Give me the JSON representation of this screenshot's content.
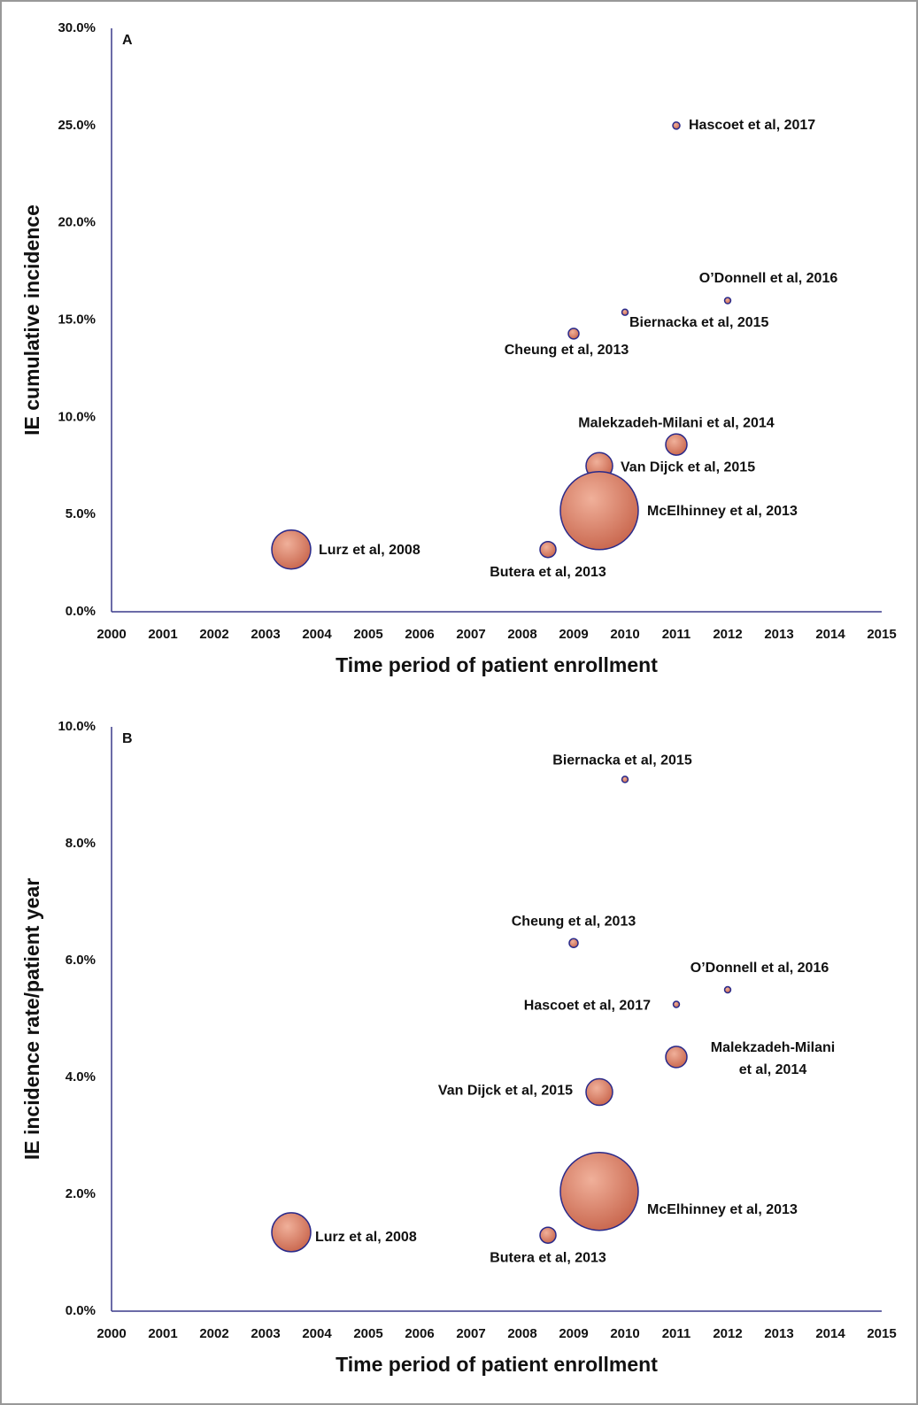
{
  "chart_data": [
    {
      "type": "bubble",
      "annotation": "A",
      "xlabel": "Time period of patient enrollment",
      "ylabel": "IE cumulative incidence",
      "labels": [
        "Hascoet et al, 2017",
        "O’Donnell et al, 2016",
        "Biernacka et al, 2015",
        "Cheung et al, 2013",
        "Malekzadeh-Milani et al, 2014",
        "Van Dijck et al, 2015",
        "McElhinney et al, 2013",
        "Lurz et al, 2008",
        "Butera et al, 2013"
      ],
      "x": [
        2011,
        2012,
        2010,
        2009,
        2011,
        2009.5,
        2009.5,
        2003.5,
        2008.5
      ],
      "values": [
        25.0,
        16.0,
        15.4,
        14.3,
        8.6,
        7.5,
        5.2,
        3.2,
        3.2
      ],
      "sizes": [
        16,
        12,
        12,
        36,
        144,
        225,
        1936,
        484,
        81
      ],
      "color": "#d9826a",
      "edge_color": "#2a2a8a",
      "xlim": [
        2000,
        2015
      ],
      "xticks": [
        2000,
        2001,
        2002,
        2003,
        2004,
        2005,
        2006,
        2007,
        2008,
        2009,
        2010,
        2011,
        2012,
        2013,
        2014,
        2015
      ],
      "ylim": [
        0,
        30
      ],
      "yticks": [
        {
          "value": 0,
          "label": "0.0%"
        },
        {
          "value": 5,
          "label": "5.0%"
        },
        {
          "value": 10,
          "label": "10.0%"
        },
        {
          "value": 15,
          "label": "15.0%"
        },
        {
          "value": 20,
          "label": "20.0%"
        },
        {
          "value": 25,
          "label": "25.0%"
        },
        {
          "value": 30,
          "label": "30.0%"
        }
      ]
    },
    {
      "type": "bubble",
      "annotation": "B",
      "xlabel": "Time period of patient enrollment",
      "ylabel": "IE incidence rate/patient year",
      "labels": [
        "Biernacka et al, 2015",
        "Cheung et al, 2013",
        "O’Donnell et al, 2016",
        "Hascoet et al, 2017",
        [
          "Malekzadeh-Milani",
          "et al, 2014"
        ],
        "Van Dijck et al, 2015",
        "McElhinney et al, 2013",
        "Lurz et al, 2008",
        "Butera et al, 2013"
      ],
      "x": [
        2010,
        2009,
        2012,
        2011,
        2011,
        2009.5,
        2009.5,
        2003.5,
        2008.5
      ],
      "values": [
        9.1,
        6.3,
        5.5,
        5.25,
        4.35,
        3.75,
        2.05,
        1.35,
        1.3
      ],
      "sizes": [
        12,
        25,
        12,
        12,
        144,
        225,
        1936,
        484,
        81
      ],
      "color": "#d9826a",
      "edge_color": "#2a2a8a",
      "xlim": [
        2000,
        2015
      ],
      "xticks": [
        2000,
        2001,
        2002,
        2003,
        2004,
        2005,
        2006,
        2007,
        2008,
        2009,
        2010,
        2011,
        2012,
        2013,
        2014,
        2015
      ],
      "ylim": [
        0,
        10
      ],
      "yticks": [
        {
          "value": 0,
          "label": "0.0%"
        },
        {
          "value": 2,
          "label": "2.0%"
        },
        {
          "value": 4,
          "label": "4.0%"
        },
        {
          "value": 6,
          "label": "6.0%"
        },
        {
          "value": 8,
          "label": "8.0%"
        },
        {
          "value": 10,
          "label": "10.0%"
        }
      ]
    }
  ]
}
